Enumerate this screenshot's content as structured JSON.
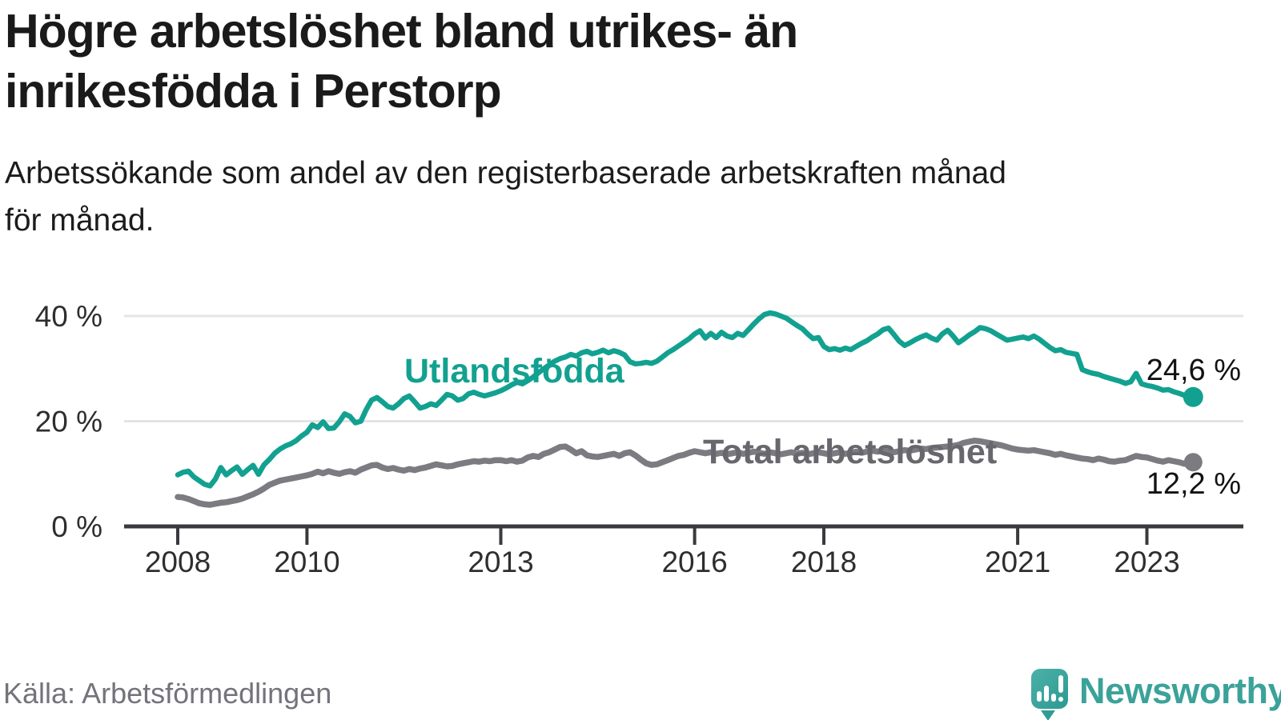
{
  "header": {
    "title_line1": "Högre arbetslöshet bland utrikes- än",
    "title_line2": "inrikesfödda i Perstorp",
    "subtitle_line1": "Arbetssökande som andel av den registerbaserade arbetskraften månad",
    "subtitle_line2": "för månad."
  },
  "footer": {
    "source": "Källa: Arbetsförmedlingen",
    "brand_name": "Newsworthy"
  },
  "colors": {
    "series_foreign": "#12a190",
    "series_total_line": "#7b7b81",
    "series_total_label": "#67676d",
    "axis": "#3a3a3e",
    "grid": "#e4e4e4",
    "tick_text": "#2e2e2e",
    "brand_teal": "#3ba29a"
  },
  "chart_data": {
    "type": "line",
    "title": "Högre arbetslöshet bland utrikes- än inrikesfödda i Perstorp",
    "subtitle": "Arbetssökande som andel av den registerbaserade arbetskraften månad för månad.",
    "x_unit": "month",
    "x_start_year": 2008,
    "points_per_year": 12,
    "ylim": [
      0,
      43
    ],
    "grid": "horizontal-only",
    "y_ticks": [
      {
        "value": 0,
        "label": "0 %"
      },
      {
        "value": 20,
        "label": "20 %"
      },
      {
        "value": 40,
        "label": "40 %"
      }
    ],
    "x_ticks": [
      {
        "year": 2008,
        "label": "2008"
      },
      {
        "year": 2010,
        "label": "2010"
      },
      {
        "year": 2013,
        "label": "2013"
      },
      {
        "year": 2016,
        "label": "2016"
      },
      {
        "year": 2018,
        "label": "2018"
      },
      {
        "year": 2021,
        "label": "2021"
      },
      {
        "year": 2023,
        "label": "2023"
      }
    ],
    "series": [
      {
        "name": "Utlandsfödda",
        "color": "#12a190",
        "stroke_width": 6.5,
        "end_label": "24,6 %",
        "end_value": 24.6,
        "values": [
          9.8,
          10.3,
          10.5,
          9.4,
          8.7,
          8.0,
          7.7,
          9.0,
          11.2,
          9.8,
          10.6,
          11.3,
          9.9,
          10.8,
          11.6,
          9.9,
          11.7,
          12.7,
          13.9,
          14.7,
          15.3,
          15.7,
          16.3,
          17.2,
          17.9,
          19.3,
          18.8,
          19.9,
          18.6,
          18.7,
          19.9,
          21.4,
          20.9,
          19.7,
          20.0,
          22.2,
          24.0,
          24.5,
          23.7,
          22.8,
          22.5,
          23.3,
          24.3,
          24.8,
          23.7,
          22.5,
          22.8,
          23.3,
          23.0,
          24.0,
          25.1,
          24.8,
          24.0,
          24.3,
          25.2,
          25.5,
          25.1,
          24.8,
          25.1,
          25.4,
          25.8,
          26.3,
          26.9,
          27.4,
          27.1,
          27.7,
          28.4,
          29.2,
          30.0,
          30.7,
          31.4,
          31.9,
          32.2,
          32.7,
          32.4,
          33.0,
          33.3,
          32.8,
          33.1,
          33.5,
          33.0,
          33.4,
          33.1,
          32.6,
          31.3,
          30.9,
          31.0,
          31.2,
          31.0,
          31.4,
          32.2,
          33.0,
          33.6,
          34.3,
          35.0,
          35.7,
          36.6,
          37.2,
          35.8,
          36.7,
          35.9,
          36.9,
          36.2,
          35.9,
          36.7,
          36.3,
          37.4,
          38.5,
          39.5,
          40.3,
          40.6,
          40.4,
          40.0,
          39.6,
          38.9,
          38.2,
          37.6,
          36.6,
          35.7,
          35.9,
          34.2,
          33.6,
          33.8,
          33.5,
          33.9,
          33.6,
          34.2,
          34.8,
          35.3,
          36.0,
          36.6,
          37.4,
          37.7,
          36.5,
          35.2,
          34.4,
          34.9,
          35.5,
          36.0,
          36.4,
          35.8,
          35.4,
          36.6,
          37.3,
          36.2,
          34.9,
          35.6,
          36.4,
          37.0,
          37.8,
          37.6,
          37.2,
          36.6,
          36.0,
          35.4,
          35.6,
          35.8,
          36.0,
          35.7,
          36.2,
          35.6,
          34.8,
          34.0,
          33.4,
          33.6,
          33.1,
          32.9,
          32.7,
          29.8,
          29.4,
          29.1,
          28.9,
          28.5,
          28.2,
          27.9,
          27.6,
          27.2,
          27.5,
          29.1,
          27.1,
          26.8,
          26.6,
          26.3,
          25.9,
          26.0,
          25.6,
          25.3,
          24.9,
          24.6
        ]
      },
      {
        "name": "Total arbetslöshet",
        "color": "#7b7b81",
        "stroke_width": 7.5,
        "end_label": "12,2 %",
        "end_value": 12.2,
        "values": [
          5.6,
          5.5,
          5.2,
          4.8,
          4.4,
          4.2,
          4.1,
          4.3,
          4.5,
          4.6,
          4.8,
          5.0,
          5.3,
          5.7,
          6.1,
          6.6,
          7.2,
          7.9,
          8.3,
          8.7,
          8.9,
          9.1,
          9.3,
          9.5,
          9.7,
          10.0,
          10.4,
          10.1,
          10.5,
          10.2,
          10.0,
          10.3,
          10.5,
          10.2,
          10.8,
          11.2,
          11.6,
          11.7,
          11.2,
          10.9,
          11.1,
          10.8,
          10.6,
          10.9,
          10.7,
          11.0,
          11.2,
          11.5,
          11.8,
          11.6,
          11.4,
          11.5,
          11.8,
          12.0,
          12.2,
          12.4,
          12.3,
          12.5,
          12.4,
          12.6,
          12.6,
          12.4,
          12.6,
          12.3,
          12.5,
          13.1,
          13.4,
          13.2,
          13.8,
          14.1,
          14.6,
          15.1,
          15.2,
          14.6,
          13.9,
          14.3,
          13.5,
          13.3,
          13.2,
          13.4,
          13.6,
          13.8,
          13.4,
          13.9,
          14.1,
          13.5,
          12.7,
          12.0,
          11.7,
          11.8,
          12.2,
          12.6,
          13.0,
          13.4,
          13.6,
          14.0,
          14.3,
          14.1,
          13.9,
          14.1,
          13.8,
          14.0,
          13.7,
          13.9,
          14.1,
          13.8,
          14.0,
          14.2,
          14.0,
          13.8,
          14.1,
          13.9,
          13.7,
          13.9,
          14.1,
          13.8,
          14.0,
          13.7,
          13.9,
          14.1,
          13.9,
          13.7,
          13.9,
          14.1,
          13.8,
          14.0,
          14.2,
          14.0,
          14.2,
          14.4,
          14.2,
          14.4,
          14.3,
          14.1,
          14.3,
          14.5,
          14.4,
          14.6,
          14.8,
          14.7,
          14.9,
          15.0,
          15.1,
          15.2,
          15.3,
          15.5,
          15.9,
          16.1,
          16.3,
          16.2,
          16.0,
          15.8,
          15.6,
          15.4,
          15.1,
          14.8,
          14.6,
          14.5,
          14.4,
          14.5,
          14.3,
          14.1,
          13.9,
          13.6,
          13.8,
          13.5,
          13.3,
          13.1,
          12.9,
          12.8,
          12.6,
          12.9,
          12.7,
          12.4,
          12.3,
          12.5,
          12.6,
          13.0,
          13.4,
          13.2,
          13.1,
          12.8,
          12.5,
          12.3,
          12.6,
          12.4,
          12.2,
          11.9,
          12.2
        ]
      }
    ]
  }
}
